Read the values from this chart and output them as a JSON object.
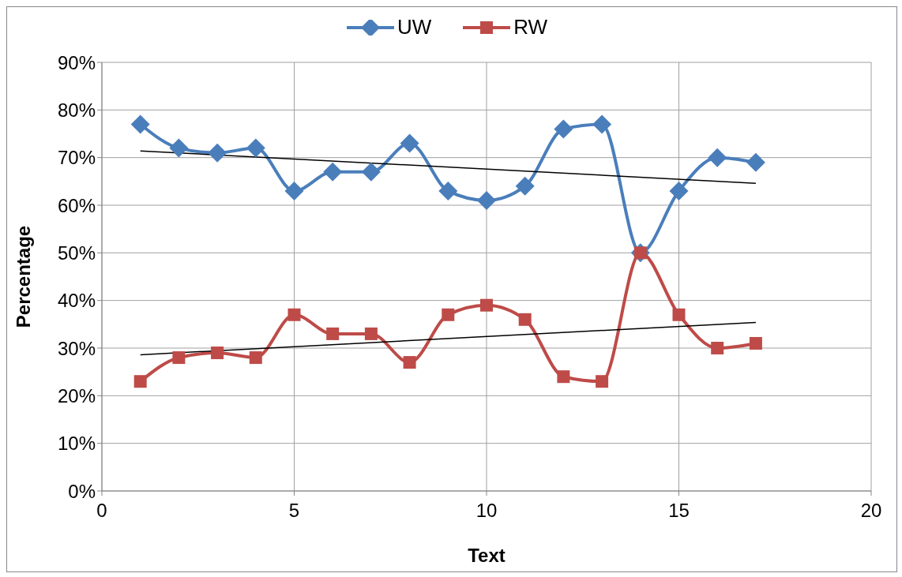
{
  "chart_data": {
    "type": "line",
    "xlabel": "Text",
    "ylabel": "Percentage",
    "x": [
      1,
      2,
      3,
      4,
      5,
      6,
      7,
      8,
      9,
      10,
      11,
      12,
      13,
      14,
      15,
      16,
      17
    ],
    "series": [
      {
        "name": "UW",
        "color": "#4a7ebb",
        "marker": "diamond",
        "values": [
          77,
          72,
          71,
          72,
          63,
          67,
          67,
          73,
          63,
          61,
          64,
          76,
          77,
          50,
          63,
          70,
          69
        ]
      },
      {
        "name": "RW",
        "color": "#be4b48",
        "marker": "square",
        "values": [
          23,
          28,
          29,
          28,
          37,
          33,
          33,
          27,
          37,
          39,
          36,
          24,
          23,
          50,
          37,
          30,
          31
        ]
      },
      {
        "type": "line",
        "color": "#000000",
        "marker": "none",
        "values": [
          71.4,
          null,
          null,
          null,
          null,
          null,
          null,
          null,
          null,
          null,
          null,
          null,
          null,
          null,
          null,
          null,
          64.6
        ]
      },
      {
        "type": "line",
        "color": "#000000",
        "marker": "none",
        "values": [
          28.6,
          null,
          null,
          null,
          null,
          null,
          null,
          null,
          null,
          null,
          null,
          null,
          null,
          null,
          null,
          null,
          35.4
        ]
      }
    ],
    "xlim": [
      0,
      20
    ],
    "xticks": [
      0,
      5,
      10,
      15,
      20
    ],
    "ylim": [
      0,
      90
    ],
    "yticks": [
      {
        "value": 0,
        "label": "0%"
      },
      {
        "value": 10,
        "label": "10%"
      },
      {
        "value": 20,
        "label": "20%"
      },
      {
        "value": 30,
        "label": "30%"
      },
      {
        "value": 40,
        "label": "40%"
      },
      {
        "value": 50,
        "label": "50%"
      },
      {
        "value": 60,
        "label": "60%"
      },
      {
        "value": 70,
        "label": "70%"
      },
      {
        "value": 80,
        "label": "80%"
      },
      {
        "value": 90,
        "label": "90%"
      }
    ],
    "grid": true,
    "legend": "top"
  }
}
